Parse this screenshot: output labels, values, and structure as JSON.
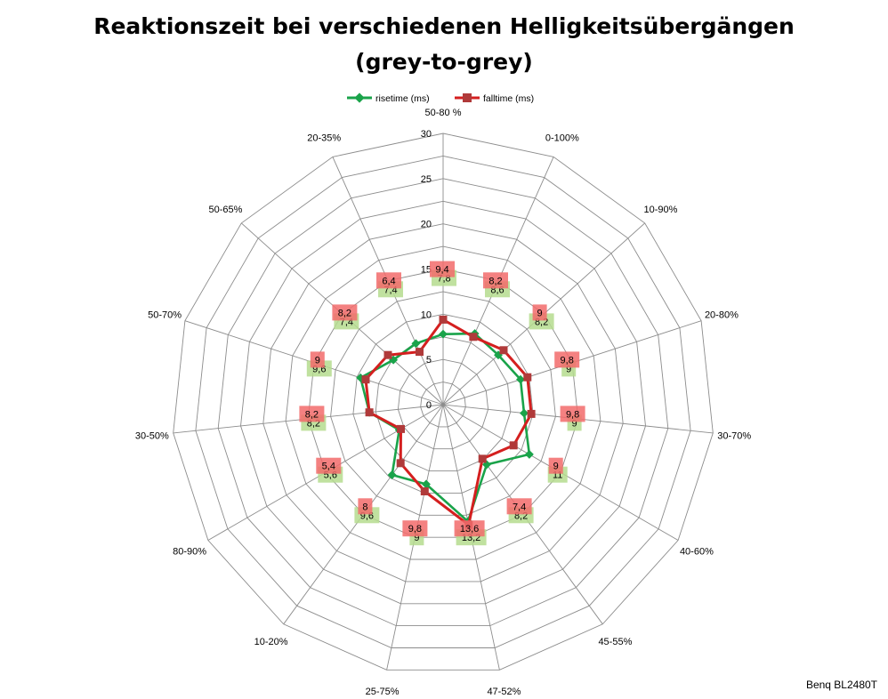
{
  "chart_data": {
    "type": "radar",
    "title_line1": "Reaktionszeit bei verschiedenen Helligkeitsübergängen",
    "title_line2": "(grey-to-grey)",
    "categories": [
      "50-80 %",
      "0-100%",
      "10-90%",
      "20-80%",
      "30-70%",
      "40-60%",
      "45-55%",
      "47-52%",
      "25-75%",
      "10-20%",
      "80-90%",
      "30-50%",
      "50-70%",
      "50-65%",
      "20-35%"
    ],
    "r_ticks": [
      0,
      5,
      10,
      15,
      20,
      25,
      30
    ],
    "r_max": 30,
    "grid": true,
    "legend_position": "top",
    "series": [
      {
        "name": "risetime (ms)",
        "color": "#1aa34a",
        "label_bg": "#b5dc8e",
        "marker": "diamond",
        "values": [
          7.8,
          8.6,
          8.2,
          9.0,
          9.0,
          11.0,
          8.2,
          13.2,
          9.0,
          9.6,
          5.6,
          8.2,
          9.6,
          7.4,
          7.4
        ],
        "labels": [
          "7,8",
          "8,6",
          "8,2",
          "9",
          "9",
          "11",
          "8,2",
          "13,2",
          "9",
          "9,6",
          "5,6",
          "8,2",
          "9,6",
          "7,4",
          "7,4"
        ]
      },
      {
        "name": "falltime (ms)",
        "color": "#d41f1f",
        "label_bg": "#f26b6b",
        "marker": "square",
        "values": [
          9.4,
          8.2,
          9.0,
          9.8,
          9.8,
          9.0,
          7.4,
          13.6,
          9.8,
          8.0,
          5.4,
          8.2,
          9.0,
          8.2,
          6.4
        ],
        "labels": [
          "9,4",
          "8,2",
          "9",
          "9,8",
          "9,8",
          "9",
          "7,4",
          "13,6",
          "9,8",
          "8",
          "5,4",
          "8,2",
          "9",
          "8,2",
          "6,4"
        ]
      }
    ]
  },
  "footer": "Benq BL2480T"
}
